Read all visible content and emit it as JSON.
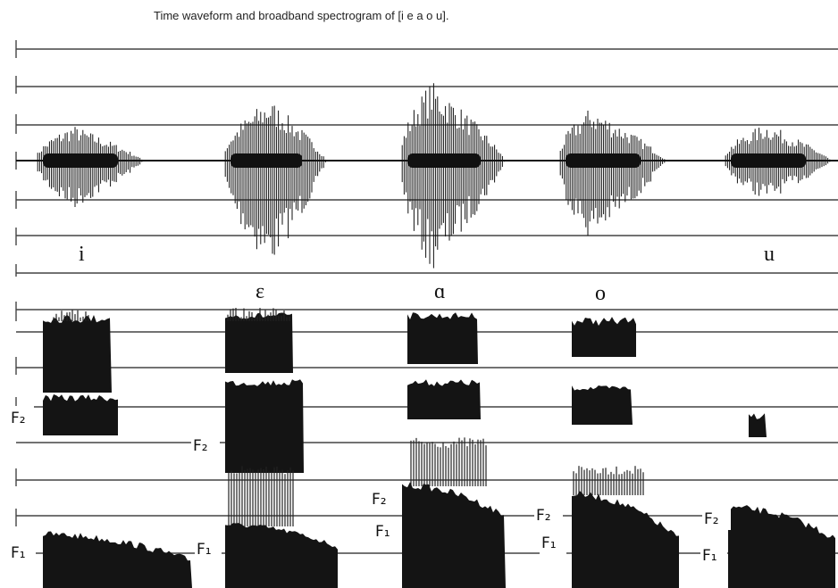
{
  "title": "Time waveform and broadband spectrogram of  [i e a o u].",
  "vowels": [
    {
      "symbol": "i"
    },
    {
      "symbol": "ε"
    },
    {
      "symbol": "ɑ"
    },
    {
      "symbol": "o"
    },
    {
      "symbol": "u"
    }
  ],
  "formant_labels": [
    "F₂",
    "F₂",
    "F₁",
    "F₁",
    "F₂",
    "F₁",
    "F₂",
    "F₁",
    "F₂",
    "F₁"
  ]
}
